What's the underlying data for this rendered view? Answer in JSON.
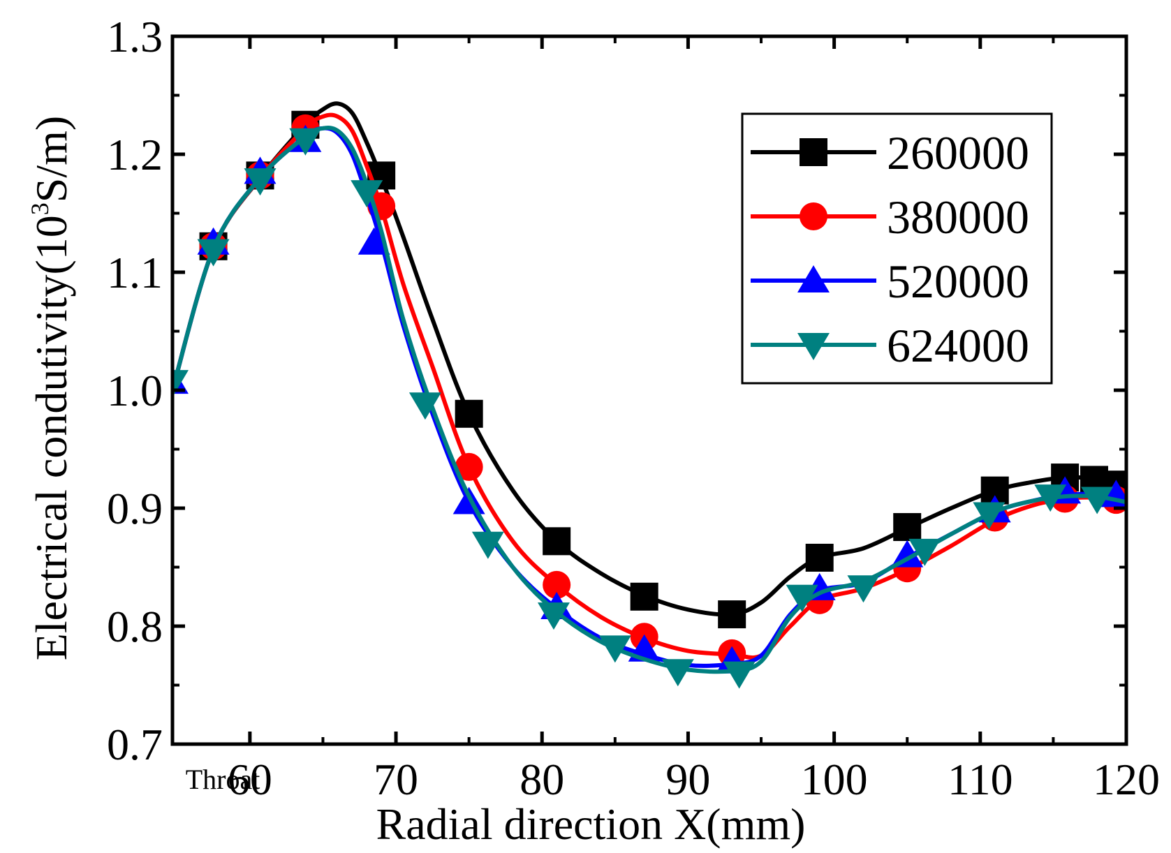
{
  "chart_data": {
    "type": "line",
    "xlabel": "Radial direction X(mm)",
    "ylabel": "Electrical condutivity(10^3 S/m)",
    "ylabel_parts": {
      "pre": "Electrical condutivity(10",
      "sup": "3",
      "post": "S/m)"
    },
    "xlim": [
      54.7,
      120
    ],
    "ylim": [
      0.7,
      1.3
    ],
    "x_ticks": [
      {
        "value": 54.7,
        "label": "Throat"
      },
      {
        "value": 60,
        "label": "60"
      },
      {
        "value": 70,
        "label": "70"
      },
      {
        "value": 80,
        "label": "80"
      },
      {
        "value": 90,
        "label": "90"
      },
      {
        "value": 100,
        "label": "100"
      },
      {
        "value": 110,
        "label": "110"
      },
      {
        "value": 120,
        "label": "120"
      }
    ],
    "y_ticks": [
      {
        "value": 0.7,
        "label": "0.7"
      },
      {
        "value": 0.8,
        "label": "0.8"
      },
      {
        "value": 0.9,
        "label": "0.9"
      },
      {
        "value": 1.0,
        "label": "1.0"
      },
      {
        "value": 1.1,
        "label": "1.1"
      },
      {
        "value": 1.2,
        "label": "1.2"
      },
      {
        "value": 1.3,
        "label": "1.3"
      }
    ],
    "legend_position": "top-right",
    "grid": false,
    "series": [
      {
        "name": "260000",
        "color": "#000000",
        "marker": "square",
        "x": [
          54.7,
          57.5,
          60.7,
          63.8,
          65.0,
          66.0,
          67.0,
          68.0,
          69.0,
          70.5,
          72.5,
          75.0,
          78.0,
          81.0,
          84.0,
          87.0,
          90.0,
          93.0,
          95.0,
          97.0,
          99.0,
          102.0,
          105.0,
          108.0,
          111.0,
          113.5,
          115.8,
          117.8,
          119.3,
          120.0
        ],
        "y": [
          1.0,
          1.12,
          1.18,
          1.225,
          1.238,
          1.243,
          1.235,
          1.21,
          1.18,
          1.13,
          1.06,
          0.98,
          0.915,
          0.872,
          0.845,
          0.826,
          0.814,
          0.81,
          0.82,
          0.842,
          0.858,
          0.866,
          0.883,
          0.9,
          0.915,
          0.922,
          0.926,
          0.925,
          0.921,
          0.918
        ],
        "marker_x": [
          57.5,
          60.7,
          63.8,
          69.0,
          75.0,
          81.0,
          87.0,
          93.0,
          99.0,
          105.0,
          111.0,
          115.8,
          117.8,
          119.3
        ],
        "marker_y": [
          1.122,
          1.182,
          1.225,
          1.182,
          0.98,
          0.872,
          0.825,
          0.81,
          0.858,
          0.884,
          0.915,
          0.926,
          0.924,
          0.92
        ]
      },
      {
        "name": "380000",
        "color": "#ff0000",
        "marker": "circle",
        "x": [
          54.7,
          57.5,
          60.7,
          63.8,
          65.0,
          66.0,
          67.0,
          68.0,
          69.0,
          70.5,
          72.5,
          75.0,
          78.0,
          81.0,
          84.0,
          87.0,
          90.0,
          93.0,
          95.0,
          97.0,
          99.0,
          102.0,
          105.0,
          108.0,
          111.0,
          113.5,
          115.8,
          117.8,
          119.3,
          120.0
        ],
        "y": [
          1.0,
          1.12,
          1.18,
          1.222,
          1.232,
          1.232,
          1.22,
          1.19,
          1.155,
          1.09,
          1.02,
          0.935,
          0.872,
          0.835,
          0.808,
          0.79,
          0.779,
          0.776,
          0.775,
          0.8,
          0.822,
          0.832,
          0.848,
          0.868,
          0.89,
          0.902,
          0.908,
          0.909,
          0.907,
          0.905
        ],
        "marker_x": [
          57.5,
          60.7,
          63.8,
          69.0,
          75.0,
          81.0,
          87.0,
          93.0,
          99.0,
          105.0,
          111.0,
          115.8,
          119.3
        ],
        "marker_y": [
          1.122,
          1.182,
          1.222,
          1.156,
          0.935,
          0.835,
          0.791,
          0.777,
          0.822,
          0.849,
          0.892,
          0.908,
          0.907
        ]
      },
      {
        "name": "520000",
        "color": "#0000ff",
        "marker": "triangle-up",
        "x": [
          54.7,
          57.5,
          60.7,
          63.8,
          65.0,
          66.0,
          67.0,
          68.0,
          69.0,
          70.5,
          72.5,
          75.0,
          78.0,
          81.0,
          84.0,
          87.0,
          90.0,
          93.0,
          95.0,
          97.0,
          99.0,
          102.0,
          105.0,
          108.0,
          111.0,
          113.5,
          115.8,
          117.8,
          119.3,
          120.0
        ],
        "y": [
          1.0,
          1.12,
          1.18,
          1.215,
          1.222,
          1.218,
          1.2,
          1.165,
          1.125,
          1.055,
          0.98,
          0.905,
          0.85,
          0.815,
          0.79,
          0.776,
          0.767,
          0.768,
          0.775,
          0.81,
          0.83,
          0.837,
          0.858,
          0.878,
          0.897,
          0.906,
          0.911,
          0.912,
          0.909,
          0.906
        ],
        "marker_x": [
          54.7,
          57.5,
          60.7,
          63.8,
          68.5,
          75.0,
          81.0,
          87.0,
          93.0,
          99.0,
          105.0,
          111.0,
          115.8,
          119.3
        ],
        "marker_y": [
          1.007,
          1.125,
          1.185,
          1.212,
          1.125,
          0.905,
          0.816,
          0.78,
          0.77,
          0.832,
          0.86,
          0.898,
          0.914,
          0.911
        ]
      },
      {
        "name": "624000",
        "color": "#008080",
        "marker": "triangle-down",
        "x": [
          54.7,
          57.5,
          60.7,
          63.8,
          65.0,
          66.0,
          67.0,
          68.0,
          69.0,
          70.5,
          72.5,
          75.0,
          78.0,
          81.0,
          84.0,
          87.0,
          90.0,
          93.0,
          95.0,
          97.0,
          99.0,
          102.0,
          105.0,
          108.0,
          111.0,
          113.5,
          115.8,
          117.8,
          119.3,
          120.0
        ],
        "y": [
          1.0,
          1.12,
          1.18,
          1.215,
          1.222,
          1.22,
          1.205,
          1.175,
          1.135,
          1.06,
          0.985,
          0.91,
          0.85,
          0.812,
          0.787,
          0.772,
          0.763,
          0.762,
          0.77,
          0.808,
          0.828,
          0.838,
          0.857,
          0.878,
          0.897,
          0.906,
          0.91,
          0.91,
          0.907,
          0.905
        ],
        "marker_x": [
          54.7,
          57.5,
          60.7,
          63.8,
          68.0,
          72.0,
          76.3,
          80.8,
          85.0,
          89.3,
          93.5,
          97.8,
          102.0,
          106.2,
          110.6,
          114.8,
          118.0
        ],
        "marker_y": [
          1.007,
          1.118,
          1.178,
          1.212,
          1.168,
          0.988,
          0.87,
          0.81,
          0.782,
          0.762,
          0.76,
          0.825,
          0.833,
          0.864,
          0.895,
          0.91,
          0.908
        ]
      }
    ]
  }
}
